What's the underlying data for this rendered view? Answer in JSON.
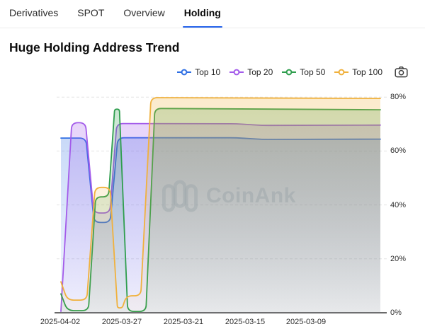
{
  "tabs": {
    "items": [
      {
        "label": "Derivatives",
        "active": false
      },
      {
        "label": "SPOT",
        "active": false
      },
      {
        "label": "Overview",
        "active": false
      },
      {
        "label": "Holding",
        "active": true
      }
    ],
    "active_underline_color": "#2563eb"
  },
  "page": {
    "title": "Huge Holding Address Trend"
  },
  "legend": {
    "items": [
      {
        "label": "Top 10",
        "color": "#2f6fe4"
      },
      {
        "label": "Top 20",
        "color": "#a35bea"
      },
      {
        "label": "Top 50",
        "color": "#2f9e4e"
      },
      {
        "label": "Top 100",
        "color": "#f0b13d"
      }
    ]
  },
  "watermark": {
    "text": "CoinAnk"
  },
  "chart_data": {
    "type": "area",
    "title": "Huge Holding Address Trend",
    "x_axis": {
      "tick_labels": [
        "2025-04-02",
        "2025-03-27",
        "2025-03-21",
        "2025-03-15",
        "2025-03-09"
      ],
      "note_direction": "dates decrease from left to right"
    },
    "y_axis": {
      "tick_labels": [
        "0%",
        "20%",
        "40%",
        "60%",
        "80%"
      ],
      "min": 0,
      "max": 85,
      "unit": "%",
      "gridlines": "dashed",
      "position": "right"
    },
    "legend_position": "top-right",
    "units": "x = percent of plot width (time), y = holding percent",
    "series": [
      {
        "name": "Top 10",
        "color": "#2f6fe4",
        "points": [
          [
            0,
            64.8
          ],
          [
            7.8,
            64.8
          ],
          [
            10.4,
            33.5
          ],
          [
            15.4,
            33.5
          ],
          [
            17.8,
            64.9
          ],
          [
            55,
            64.9
          ],
          [
            63,
            64.3
          ],
          [
            100,
            64.4
          ]
        ]
      },
      {
        "name": "Top 20",
        "color": "#a35bea",
        "points": [
          [
            0,
            0.5
          ],
          [
            3.4,
            70.5
          ],
          [
            7.7,
            70.5
          ],
          [
            10.3,
            37
          ],
          [
            15.3,
            37
          ],
          [
            17.5,
            70.2
          ],
          [
            55,
            70.1
          ],
          [
            63,
            69.5
          ],
          [
            100,
            69.6
          ]
        ]
      },
      {
        "name": "Top 50",
        "color": "#2f9e4e",
        "points": [
          [
            0,
            7
          ],
          [
            2,
            0.8
          ],
          [
            8.6,
            0.8
          ],
          [
            10.9,
            43
          ],
          [
            14.9,
            43
          ],
          [
            16.8,
            75.5
          ],
          [
            18.3,
            75.5
          ],
          [
            20.9,
            0.5
          ],
          [
            26.6,
            0.5
          ],
          [
            29.4,
            75.8
          ],
          [
            100,
            75.3
          ]
        ]
      },
      {
        "name": "Top 100",
        "color": "#f0b13d",
        "points": [
          [
            0,
            11.5
          ],
          [
            2,
            4.7
          ],
          [
            8.1,
            4.7
          ],
          [
            10.7,
            46.5
          ],
          [
            15.4,
            46.5
          ],
          [
            17.7,
            1.8
          ],
          [
            19.2,
            1.8
          ],
          [
            20.5,
            6.3
          ],
          [
            25,
            6.3
          ],
          [
            28.2,
            79.8
          ],
          [
            100,
            79.5
          ]
        ]
      }
    ]
  }
}
